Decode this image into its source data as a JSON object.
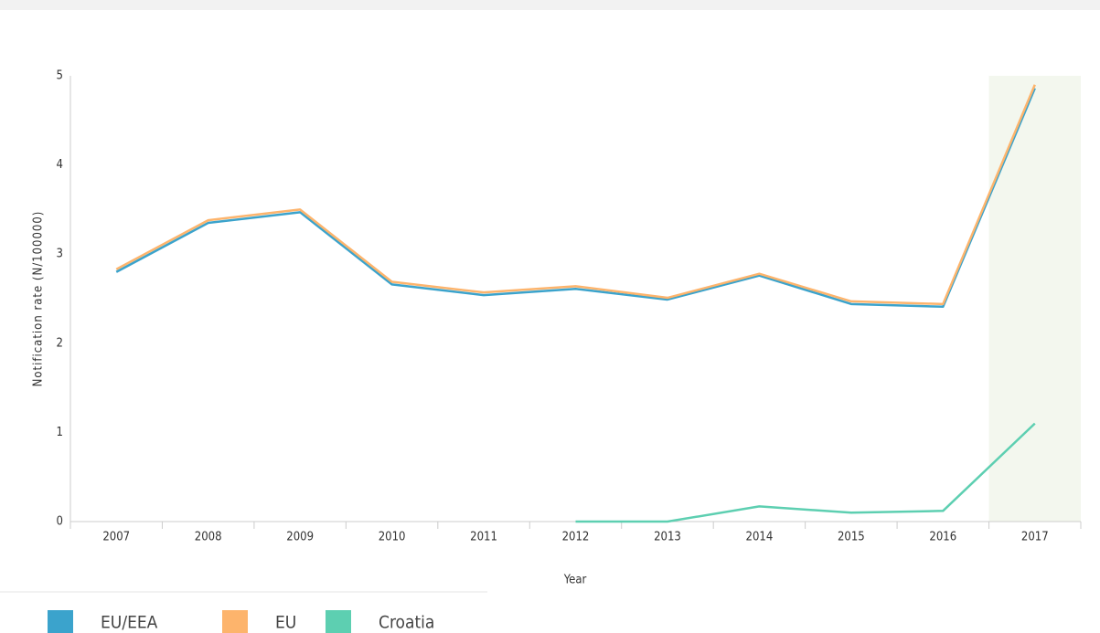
{
  "chart_data": {
    "type": "line",
    "xlabel": "Year",
    "ylabel": "Notification rate (N/100000)",
    "categories": [
      "2007",
      "2008",
      "2009",
      "2010",
      "2011",
      "2012",
      "2013",
      "2014",
      "2015",
      "2016",
      "2017"
    ],
    "series": [
      {
        "name": "EU/EEA",
        "color": "#3ba3cc",
        "values": [
          2.8,
          3.35,
          3.47,
          2.66,
          2.54,
          2.61,
          2.49,
          2.76,
          2.44,
          2.41,
          4.86
        ]
      },
      {
        "name": "EU",
        "color": "#fdb46c",
        "values": [
          2.83,
          3.38,
          3.5,
          2.69,
          2.57,
          2.64,
          2.51,
          2.78,
          2.47,
          2.44,
          4.9
        ]
      },
      {
        "name": "Croatia",
        "color": "#5dcfb1",
        "values": [
          null,
          null,
          null,
          null,
          null,
          0,
          0,
          0.17,
          0.1,
          0.12,
          1.1
        ]
      }
    ],
    "ylim": [
      0,
      5
    ],
    "yticks": [
      0,
      1,
      2,
      3,
      4,
      5
    ],
    "grid": false
  }
}
